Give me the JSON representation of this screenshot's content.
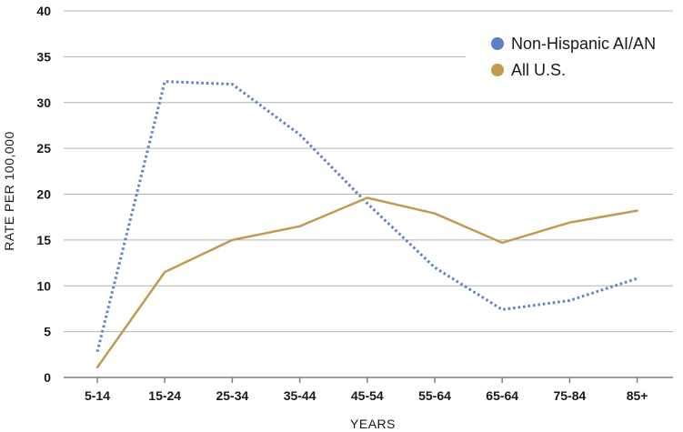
{
  "chart_data": {
    "type": "line",
    "categories": [
      "5-14",
      "15-24",
      "25-34",
      "35-44",
      "45-54",
      "55-64",
      "65-64",
      "75-84",
      "85+"
    ],
    "series": [
      {
        "name": "Non-Hispanic AI/AN",
        "values": [
          2.8,
          32.3,
          32.0,
          26.5,
          19.0,
          12.0,
          7.4,
          8.4,
          10.8
        ],
        "color": "#5b7fc4",
        "line_style": "dotted"
      },
      {
        "name": "All U.S.",
        "values": [
          1.1,
          11.5,
          15.0,
          16.5,
          19.6,
          17.9,
          14.7,
          16.9,
          18.2
        ],
        "color": "#c49a52",
        "line_style": "solid"
      }
    ],
    "xlabel": "YEARS",
    "ylabel": "RATE PER 100,000",
    "ylim": [
      0,
      40
    ],
    "yticks": [
      0,
      5,
      10,
      15,
      20,
      25,
      30,
      35,
      40
    ],
    "grid": true,
    "legend_position": "top-right"
  }
}
